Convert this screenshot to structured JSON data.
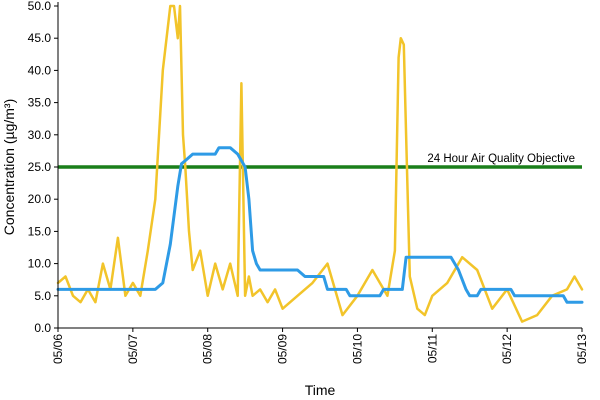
{
  "chart_data": {
    "type": "line",
    "xlabel": "Time",
    "ylabel": "Concentration (µg/m³)",
    "ylim": [
      0,
      50
    ],
    "y_ticks": [
      "0.0",
      "5.0",
      "10.0",
      "15.0",
      "20.0",
      "25.0",
      "30.0",
      "35.0",
      "40.0",
      "45.0",
      "50.0"
    ],
    "x_range": [
      "05/06",
      "05/13"
    ],
    "x_ticks": [
      "05/06",
      "05/07",
      "05/08",
      "05/09",
      "05/10",
      "05/11",
      "05/12",
      "05/13"
    ],
    "grid": false,
    "legend": "none",
    "reference_line": {
      "y": 25,
      "label": "24 Hour Air Quality Objective",
      "color": "#1a7f1a"
    },
    "series": [
      {
        "color": "#f2c42a",
        "x": [
          0,
          0.1,
          0.2,
          0.3,
          0.4,
          0.5,
          0.6,
          0.7,
          0.8,
          0.9,
          1.0,
          1.1,
          1.2,
          1.3,
          1.4,
          1.5,
          1.55,
          1.6,
          1.63,
          1.67,
          1.7,
          1.75,
          1.8,
          1.9,
          2.0,
          2.1,
          2.2,
          2.3,
          2.4,
          2.45,
          2.5,
          2.55,
          2.6,
          2.7,
          2.8,
          2.9,
          3.0,
          3.2,
          3.4,
          3.6,
          3.8,
          4.0,
          4.2,
          4.4,
          4.5,
          4.55,
          4.58,
          4.62,
          4.65,
          4.7,
          4.8,
          4.9,
          5.0,
          5.2,
          5.4,
          5.6,
          5.8,
          6.0,
          6.2,
          6.4,
          6.6,
          6.8,
          6.9,
          7.0
        ],
        "values": [
          7,
          8,
          5,
          4,
          6,
          4,
          10,
          6,
          14,
          5,
          7,
          5,
          12,
          20,
          40,
          50,
          50,
          45,
          50,
          30,
          25,
          15,
          9,
          12,
          5,
          10,
          6,
          10,
          5,
          38,
          5,
          8,
          5,
          6,
          4,
          6,
          3,
          5,
          7,
          10,
          2,
          5,
          9,
          5,
          12,
          42,
          45,
          44,
          30,
          8,
          3,
          2,
          5,
          7,
          11,
          9,
          3,
          6,
          1,
          2,
          5,
          6,
          8,
          6
        ]
      },
      {
        "color": "#2e9be6",
        "x": [
          0,
          0.5,
          0.6,
          1.3,
          1.4,
          1.5,
          1.6,
          1.65,
          1.7,
          1.8,
          2.1,
          2.15,
          2.3,
          2.4,
          2.5,
          2.55,
          2.6,
          2.65,
          2.7,
          3.2,
          3.3,
          3.55,
          3.6,
          3.85,
          3.9,
          4.3,
          4.35,
          4.6,
          4.65,
          5.25,
          5.35,
          5.45,
          5.5,
          5.6,
          5.65,
          6.05,
          6.1,
          6.75,
          6.8,
          7.0
        ],
        "values": [
          6,
          6,
          6,
          6,
          7,
          13,
          22,
          25.5,
          26,
          27,
          27,
          28,
          28,
          27,
          25,
          20,
          12,
          10,
          9,
          9,
          8,
          8,
          6,
          6,
          5,
          5,
          6,
          6,
          11,
          11,
          9,
          6,
          5,
          5,
          6,
          6,
          5,
          5,
          4,
          4
        ]
      }
    ]
  }
}
